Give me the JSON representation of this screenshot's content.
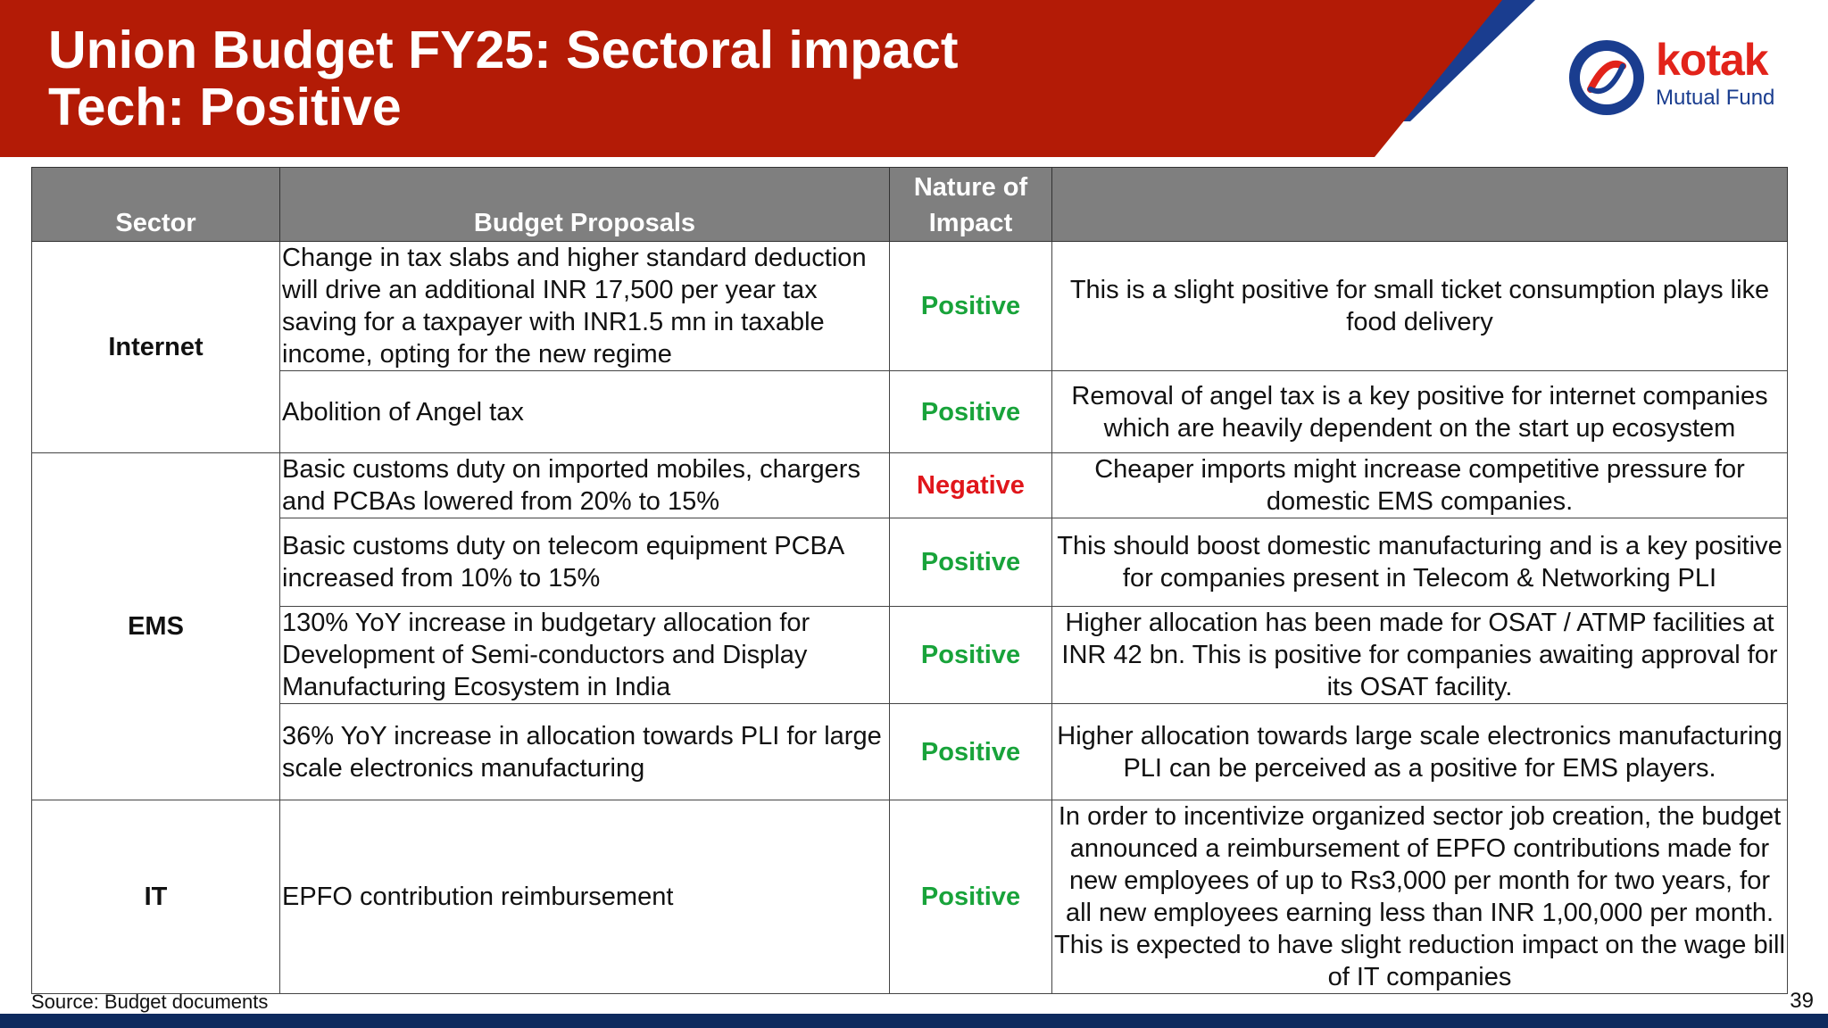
{
  "header": {
    "title_line1": "Union Budget FY25: Sectoral impact",
    "title_line2": "Tech: Positive"
  },
  "logo": {
    "brand": "kotak",
    "subtitle": "Mutual Fund"
  },
  "colors": {
    "banner_red": "#b31b06",
    "accent_blue": "#1a3d8f",
    "header_gray": "#7f7f7f",
    "positive_green": "#18a33a",
    "negative_red": "#e0161b",
    "footer_navy": "#0d2a5e"
  },
  "table": {
    "headers": [
      "Sector",
      "Budget Proposals",
      "Nature of Impact",
      ""
    ],
    "groups": [
      {
        "sector": "Internet",
        "rows": [
          {
            "proposal": "Change in tax slabs and higher standard deduction will drive an additional INR 17,500 per year tax saving for a taxpayer with INR1.5 mn in taxable income, opting for the new regime",
            "impact": "Positive",
            "comment": "This is a slight positive for small ticket consumption plays like food delivery"
          },
          {
            "proposal": "Abolition of Angel tax",
            "impact": "Positive",
            "comment": "Removal of angel tax is a key positive for internet companies which are heavily dependent on the start up ecosystem"
          }
        ]
      },
      {
        "sector": "EMS",
        "rows": [
          {
            "proposal": "Basic customs duty on imported mobiles, chargers and PCBAs lowered from 20% to 15%",
            "impact": "Negative",
            "comment": "Cheaper imports might increase competitive pressure for domestic EMS companies."
          },
          {
            "proposal": "Basic customs duty on telecom equipment PCBA increased from 10% to 15%",
            "impact": "Positive",
            "comment": "This should boost domestic manufacturing and is a key positive for companies present in Telecom & Networking PLI"
          },
          {
            "proposal": "130% YoY increase in budgetary allocation for Development of Semi-conductors and Display Manufacturing Ecosystem in India",
            "impact": "Positive",
            "comment": "Higher allocation has been made for OSAT / ATMP facilities at INR 42 bn. This is positive for companies awaiting approval for its OSAT facility."
          },
          {
            "proposal": "36% YoY increase in allocation towards PLI for large scale electronics manufacturing",
            "impact": "Positive",
            "comment": "Higher allocation towards large scale electronics manufacturing PLI can be perceived as a positive for EMS players."
          }
        ]
      },
      {
        "sector": "IT",
        "rows": [
          {
            "proposal": "EPFO contribution reimbursement",
            "impact": "Positive",
            "comment": "In order to incentivize organized sector job creation, the budget announced a reimbursement of EPFO contributions made for new employees of up to Rs3,000 per month for two years, for all new employees earning less than INR 1,00,000 per month. This is expected to have slight reduction impact on the wage bill of IT companies"
          }
        ]
      }
    ]
  },
  "footer": {
    "source": "Source: Budget documents",
    "page_number": "39"
  }
}
